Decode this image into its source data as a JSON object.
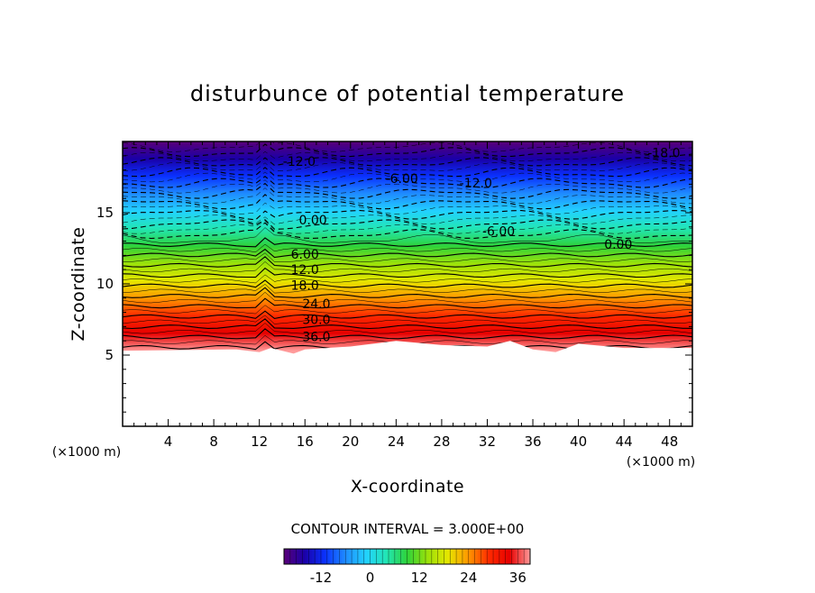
{
  "chart_data": {
    "type": "contour",
    "title": "disturbunce of potential temperature",
    "xlabel": "X-coordinate",
    "ylabel": "Z-coordinate",
    "x_unit_label": "(×1000 m)",
    "xlim": [
      0,
      50
    ],
    "ylim": [
      0,
      20
    ],
    "x_ticks": [
      4,
      8,
      12,
      16,
      20,
      24,
      28,
      32,
      36,
      40,
      44,
      48
    ],
    "y_ticks": [
      5,
      10,
      15
    ],
    "x_tick_labels": [
      "4",
      "8",
      "12",
      "16",
      "20",
      "24",
      "28",
      "32",
      "36",
      "40",
      "44",
      "48"
    ],
    "y_tick_labels": [
      "5",
      "10",
      "15"
    ],
    "contour_interval_text": "CONTOUR INTERVAL = 3.000E+00",
    "contour_interval": 3.0,
    "negative_contours": "dashed",
    "terrain_top_approx_z": 5.3,
    "field_range": [
      -20,
      42
    ],
    "contour_labels": [
      {
        "text": "-18.0",
        "x": 47.5,
        "z": 19.2
      },
      {
        "text": "-12.0",
        "x": 15.5,
        "z": 18.6
      },
      {
        "text": "-6.00",
        "x": 24.5,
        "z": 17.4
      },
      {
        "text": "-12.0",
        "x": 31.0,
        "z": 17.1
      },
      {
        "text": "0.00",
        "x": 16.7,
        "z": 14.5
      },
      {
        "text": "-6.00",
        "x": 33.0,
        "z": 13.7
      },
      {
        "text": "0.00",
        "x": 43.5,
        "z": 12.8
      },
      {
        "text": "6.00",
        "x": 16.0,
        "z": 12.1
      },
      {
        "text": "12.0",
        "x": 16.0,
        "z": 11.0
      },
      {
        "text": "18.0",
        "x": 16.0,
        "z": 9.9
      },
      {
        "text": "24.0",
        "x": 17.0,
        "z": 8.6
      },
      {
        "text": "30.0",
        "x": 17.0,
        "z": 7.5
      },
      {
        "text": "36.0",
        "x": 17.0,
        "z": 6.3
      }
    ]
  },
  "colorbar": {
    "ticks": [
      -12,
      0,
      12,
      24,
      36
    ],
    "tick_labels": [
      "-12",
      "0",
      "12",
      "24",
      "36"
    ],
    "range": [
      -21,
      39
    ],
    "colors": [
      "#5a0078",
      "#1a00a8",
      "#0a32ff",
      "#1f8cff",
      "#22d2ff",
      "#22e6b4",
      "#2ed23a",
      "#9be20a",
      "#e6e600",
      "#ff9600",
      "#ff2a00",
      "#e60000",
      "#ff9a9a"
    ]
  }
}
